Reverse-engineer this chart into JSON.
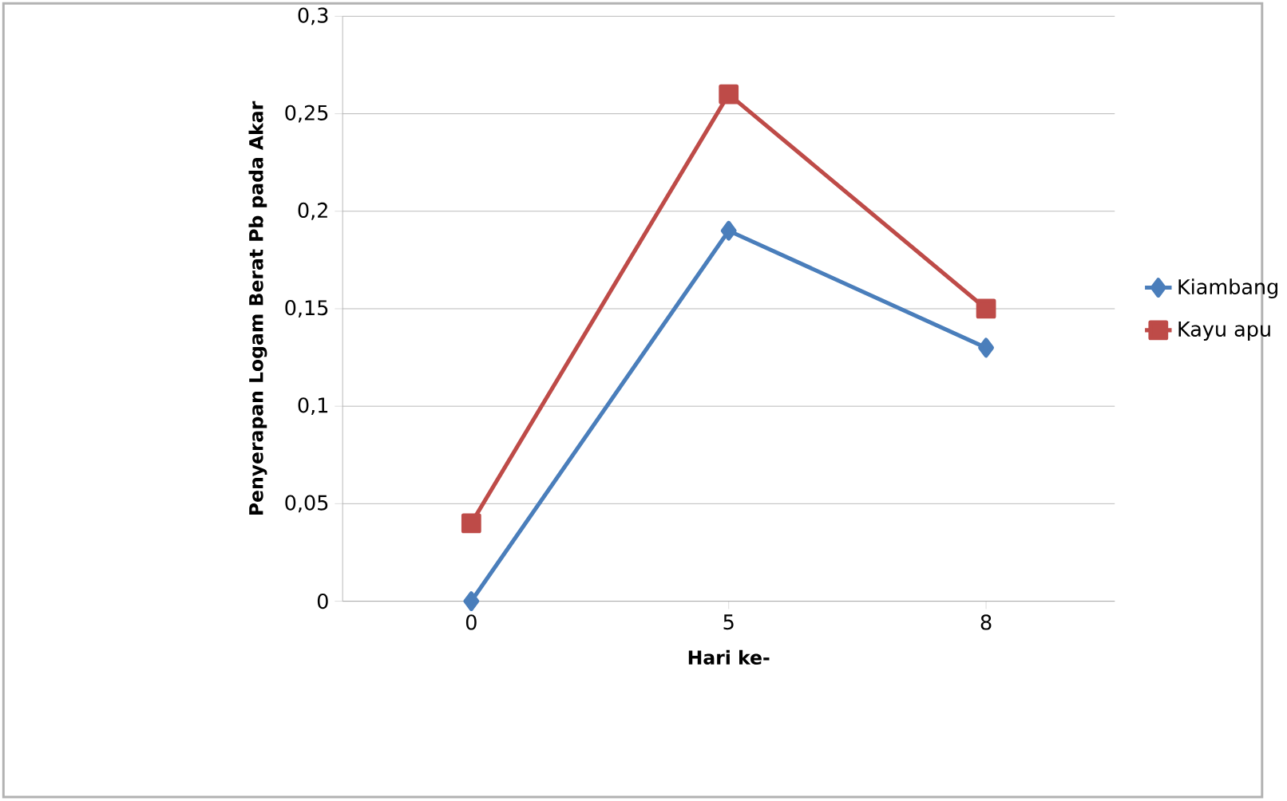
{
  "chart_data": {
    "type": "line",
    "xlabel": "Hari ke-",
    "ylabel": "Penyerapan Logam Berat Pb pada Akar",
    "categories": [
      "0",
      "5",
      "8"
    ],
    "series": [
      {
        "name": "Kiambang",
        "color": "#4a7ebb",
        "marker": "diamond",
        "values": [
          0,
          0.19,
          0.13
        ]
      },
      {
        "name": "Kayu apu",
        "color": "#be4b48",
        "marker": "square",
        "values": [
          0.04,
          0.26,
          0.15
        ]
      }
    ],
    "ylim": [
      0,
      0.3
    ],
    "yticks": [
      0,
      {
        "value": 0.05,
        "label": "0,05"
      },
      {
        "value": 0.1,
        "label": "0,1"
      },
      {
        "value": 0.15,
        "label": "0,15"
      },
      {
        "value": 0.2,
        "label": "0,2"
      },
      {
        "value": 0.25,
        "label": "0,25"
      },
      {
        "value": 0.3,
        "label": "0,3"
      }
    ],
    "grid": "y",
    "legend": "right",
    "line_style": "solid"
  }
}
